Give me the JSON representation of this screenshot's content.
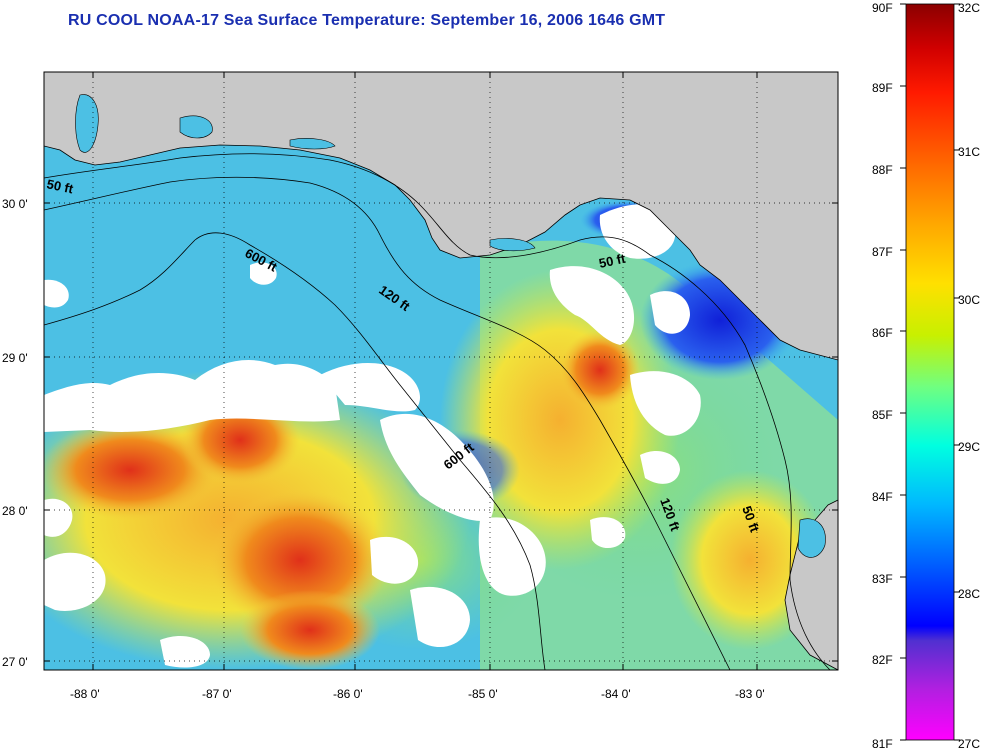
{
  "title": "RU COOL  NOAA-17  Sea Surface Temperature:  September 16, 2006 1646 GMT",
  "map": {
    "lon_labels": [
      "-88 0'",
      "-87 0'",
      "-86 0'",
      "-85 0'",
      "-84 0'",
      "-83 0'"
    ],
    "lat_labels": [
      "30 0'",
      "29 0'",
      "28 0'",
      "27 0'"
    ],
    "contour_labels": [
      "50 ft",
      "600 ft",
      "120 ft",
      "50 ft",
      "600 ft",
      "120 ft",
      "50 ft"
    ],
    "colors": {
      "land": "#c8c8c8",
      "cloud": "#ffffff",
      "cool_water": "#3fb6ea",
      "cold_water": "#1d3ee0",
      "mid_water": "#7fe08a",
      "warm_water": "#f2e23a",
      "hot_water": "#f08a1c",
      "hottest_water": "#e0301a"
    }
  },
  "colorbar": {
    "fahrenheit_labels": [
      "90F",
      "89F",
      "88F",
      "87F",
      "86F",
      "85F",
      "84F",
      "83F",
      "82F",
      "81F"
    ],
    "celsius_labels": [
      "32C",
      "31C",
      "30C",
      "29C",
      "28C",
      "27C"
    ],
    "gradient_stops": [
      "#8b0000",
      "#ff0000",
      "#ff7f00",
      "#ffd200",
      "#e8f000",
      "#7fff70",
      "#00e8ff",
      "#0088ff",
      "#0000ff",
      "#5a2ad8",
      "#ff00ff"
    ]
  }
}
